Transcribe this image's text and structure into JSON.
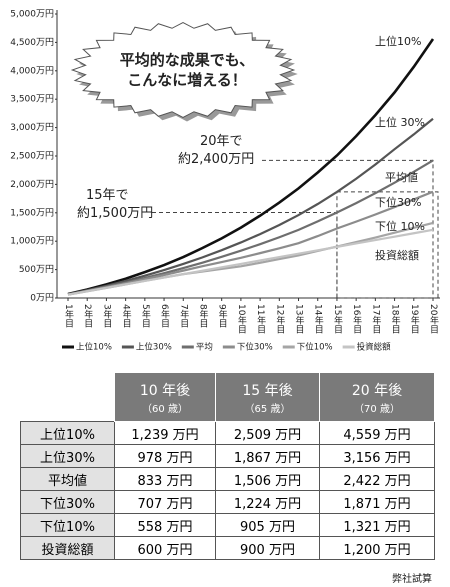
{
  "chart_data": {
    "type": "line",
    "categories": [
      "1年目",
      "2年目",
      "3年目",
      "4年目",
      "5年目",
      "6年目",
      "7年目",
      "8年目",
      "9年目",
      "10年目",
      "11年目",
      "12年目",
      "13年目",
      "14年目",
      "15年目",
      "16年目",
      "17年目",
      "18年目",
      "19年目",
      "20年目"
    ],
    "ylim": [
      0,
      5000
    ],
    "yticks": [
      {
        "value": 0,
        "label": "0万円"
      },
      {
        "value": 500,
        "label": "500万円"
      },
      {
        "value": 1000,
        "label": "1,000万円"
      },
      {
        "value": 1500,
        "label": "1,500万円"
      },
      {
        "value": 2000,
        "label": "2,000万円"
      },
      {
        "value": 2500,
        "label": "2,500万円"
      },
      {
        "value": 3000,
        "label": "3,000万円"
      },
      {
        "value": 3500,
        "label": "3,500万円"
      },
      {
        "value": 4000,
        "label": "4,000万円"
      },
      {
        "value": 4500,
        "label": "4,500万円"
      },
      {
        "value": 5000,
        "label": "5,000万円"
      }
    ],
    "series": [
      {
        "name": "上位10%",
        "label": "上位10%",
        "color": "#111111",
        "values": [
          70,
          150,
          240,
          340,
          455,
          580,
          720,
          880,
          1050,
          1239,
          1450,
          1680,
          1930,
          2210,
          2509,
          2850,
          3220,
          3620,
          4070,
          4559
        ]
      },
      {
        "name": "上位30%",
        "label": "上位 30%",
        "color": "#555555",
        "values": [
          66,
          138,
          215,
          300,
          392,
          492,
          600,
          715,
          842,
          978,
          1125,
          1285,
          1460,
          1655,
          1867,
          2100,
          2350,
          2620,
          2880,
          3156
        ]
      },
      {
        "name": "平均",
        "label": "平均値",
        "color": "#6e6e6e",
        "values": [
          62,
          128,
          198,
          272,
          352,
          437,
          527,
          622,
          725,
          833,
          948,
          1070,
          1200,
          1348,
          1506,
          1670,
          1845,
          2030,
          2222,
          2422
        ]
      },
      {
        "name": "下位30%",
        "label": "下位30%",
        "color": "#8c8c8c",
        "values": [
          61,
          124,
          190,
          258,
          330,
          405,
          482,
          560,
          632,
          707,
          790,
          875,
          965,
          1090,
          1224,
          1345,
          1470,
          1600,
          1735,
          1871
        ]
      },
      {
        "name": "下位10%",
        "label": "下位 10%",
        "color": "#a5a5a5",
        "values": [
          59,
          118,
          178,
          240,
          302,
          362,
          420,
          465,
          512,
          558,
          620,
          685,
          750,
          828,
          905,
          985,
          1065,
          1150,
          1235,
          1321
        ]
      },
      {
        "name": "投資総額",
        "label": "投資総額",
        "color": "#c4c4c4",
        "values": [
          60,
          120,
          180,
          240,
          300,
          360,
          420,
          480,
          540,
          600,
          660,
          720,
          780,
          840,
          900,
          960,
          1020,
          1080,
          1140,
          1200
        ]
      }
    ],
    "callout": [
      "平均的な成果でも、",
      "こんなに増える！"
    ],
    "note20": [
      "20年で",
      "約2,400万円"
    ],
    "note15": [
      "15年で",
      "約1,500万円"
    ]
  },
  "table": {
    "columns": [
      {
        "title": "10 年後",
        "sub": "（60 歳）"
      },
      {
        "title": "15 年後",
        "sub": "（65 歳）"
      },
      {
        "title": "20 年後",
        "sub": "（70 歳）"
      }
    ],
    "rows": [
      {
        "label": "上位10%",
        "cells": [
          "1,239 万円",
          "2,509 万円",
          "4,559 万円"
        ]
      },
      {
        "label": "上位30%",
        "cells": [
          "978 万円",
          "1,867 万円",
          "3,156 万円"
        ]
      },
      {
        "label": "平均値",
        "cells": [
          "833 万円",
          "1,506 万円",
          "2,422 万円"
        ]
      },
      {
        "label": "下位30%",
        "cells": [
          "707 万円",
          "1,224 万円",
          "1,871 万円"
        ]
      },
      {
        "label": "下位10%",
        "cells": [
          "558 万円",
          "905 万円",
          "1,321 万円"
        ]
      },
      {
        "label": "投資総額",
        "cells": [
          "600 万円",
          "900 万円",
          "1,200 万円"
        ]
      }
    ],
    "footnote": "弊社試算"
  }
}
